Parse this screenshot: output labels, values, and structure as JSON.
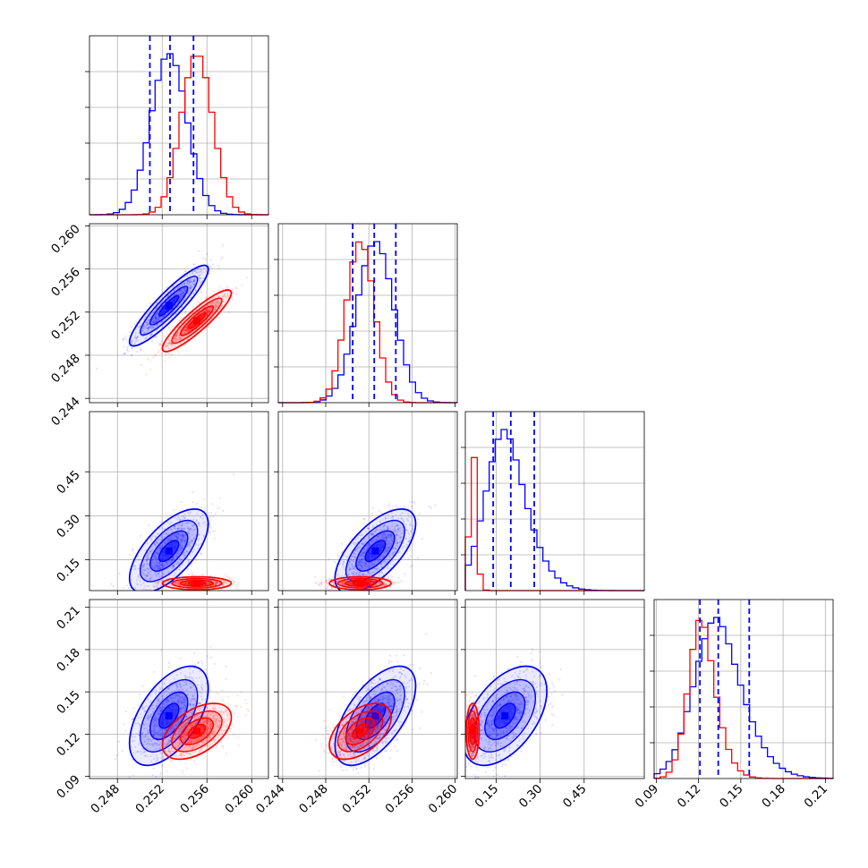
{
  "chart_data": {
    "type": "corner",
    "title": "",
    "n_params": 4,
    "grid": true,
    "colors": {
      "series_a": "#0000ff",
      "series_b": "#ff0000",
      "quantile_lines": "#0000ff"
    },
    "axes": [
      {
        "range": [
          0.2455,
          0.2615
        ],
        "ticks": [
          "0.248",
          "0.252",
          "0.256",
          "0.260"
        ],
        "tick_values": [
          0.248,
          0.252,
          0.256,
          0.26
        ]
      },
      {
        "range": [
          0.2436,
          0.2602
        ],
        "ticks": [
          "0.244",
          "0.248",
          "0.252",
          "0.256",
          "0.260"
        ],
        "tick_values": [
          0.244,
          0.248,
          0.252,
          0.256,
          0.26
        ]
      },
      {
        "range": [
          0.045,
          0.655
        ],
        "ticks": [
          "0.15",
          "0.30",
          "0.45"
        ],
        "tick_values": [
          0.15,
          0.3,
          0.45
        ]
      },
      {
        "range": [
          0.0885,
          0.2155
        ],
        "ticks": [
          "0.09",
          "0.12",
          "0.15",
          "0.18",
          "0.21"
        ],
        "tick_values": [
          0.09,
          0.12,
          0.15,
          0.18,
          0.21
        ]
      }
    ],
    "series": [
      {
        "color": "#0000ff",
        "means": [
          0.2526,
          0.2526,
          0.18,
          0.133
        ],
        "sds": [
          0.0016,
          0.0017,
          0.065,
          0.016
        ],
        "quantiles": [
          [
            0.2509,
            0.2527,
            0.2548
          ],
          [
            0.2505,
            0.2525,
            0.2545
          ],
          [
            0.14,
            0.2,
            0.28
          ],
          [
            0.121,
            0.134,
            0.156
          ]
        ]
      },
      {
        "color": "#ff0000",
        "means": [
          0.2551,
          0.2512,
          0.07,
          0.122
        ],
        "sds": [
          0.0014,
          0.0013,
          0.01,
          0.009
        ]
      }
    ],
    "correlations": [
      {
        "pair": [
          1,
          0
        ],
        "series_a": 0.9,
        "series_b": 0.9
      },
      {
        "pair": [
          2,
          0
        ],
        "series_a": 0.65,
        "series_b": 0.0
      },
      {
        "pair": [
          2,
          1
        ],
        "series_a": 0.65,
        "series_b": 0.0
      },
      {
        "pair": [
          3,
          0
        ],
        "series_a": 0.55,
        "series_b": 0.5
      },
      {
        "pair": [
          3,
          1
        ],
        "series_a": 0.6,
        "series_b": 0.5
      },
      {
        "pair": [
          3,
          2
        ],
        "series_a": 0.5,
        "series_b": 0.0
      }
    ]
  }
}
